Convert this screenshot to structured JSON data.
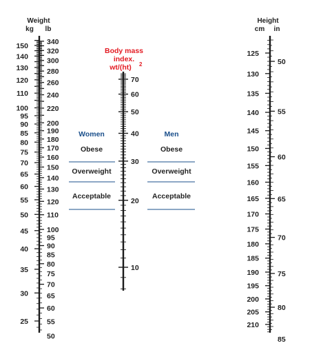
{
  "weight_scale": {
    "header_line1": "Weight",
    "header_kg": "kg",
    "header_lb": "lb",
    "kg_labels": [
      "150",
      "140",
      "130",
      "120",
      "110",
      "100",
      "95",
      "90",
      "85",
      "80",
      "75",
      "70",
      "65",
      "60",
      "55",
      "50",
      "45",
      "40",
      "35",
      "30",
      "25"
    ],
    "lb_labels": [
      "340",
      "320",
      "300",
      "280",
      "260",
      "240",
      "220",
      "200",
      "190",
      "180",
      "170",
      "160",
      "150",
      "140",
      "130",
      "120",
      "110",
      "100",
      "95",
      "90",
      "85",
      "80",
      "75",
      "70",
      "65",
      "60",
      "55",
      "50"
    ]
  },
  "bmi_scale": {
    "title_line1": "Body mass",
    "title_line2": "index.",
    "title_line3": "wt/(ht)",
    "title_superscript": "2",
    "labels": [
      "70",
      "60",
      "50",
      "40",
      "30",
      "20",
      "10"
    ],
    "title_color": "#e31b23"
  },
  "women": {
    "title": "Women",
    "categories": [
      "Obese",
      "Overweight",
      "Acceptable"
    ]
  },
  "men": {
    "title": "Men",
    "categories": [
      "Obese",
      "Overweight",
      "Acceptable"
    ]
  },
  "group_title_color": "#1a4f8b",
  "divider_color": "#1a4f8b",
  "height_scale": {
    "header_line1": "Height",
    "header_cm": "cm",
    "header_in": "in",
    "cm_labels": [
      "125",
      "130",
      "135",
      "140",
      "145",
      "150",
      "155",
      "160",
      "165",
      "170",
      "175",
      "180",
      "185",
      "190",
      "195",
      "200",
      "205",
      "210"
    ],
    "in_labels": [
      "50",
      "55",
      "60",
      "65",
      "70",
      "75",
      "80",
      "85"
    ]
  }
}
